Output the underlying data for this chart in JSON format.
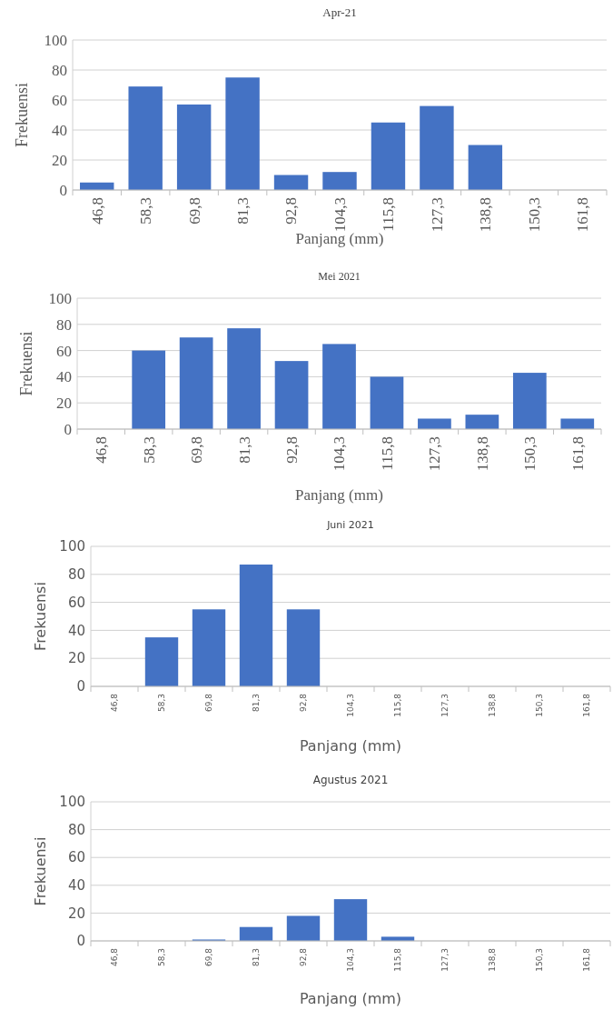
{
  "chart_data": [
    {
      "type": "bar",
      "title": "Apr-21",
      "xlabel": "Panjang (mm)",
      "ylabel": "Frekuensi",
      "categories": [
        "46,8",
        "58,3",
        "69,8",
        "81,3",
        "92,8",
        "104,3",
        "115,8",
        "127,3",
        "138,8",
        "150,3",
        "161,8"
      ],
      "values": [
        5,
        69,
        57,
        75,
        10,
        12,
        45,
        56,
        30,
        0,
        0
      ],
      "color": "#4472c4",
      "ylim": [
        0,
        100
      ],
      "yticks": [
        0,
        20,
        40,
        60,
        80,
        100
      ],
      "grid": "y"
    },
    {
      "type": "bar",
      "title": "Mei 2021",
      "xlabel": "Panjang (mm)",
      "ylabel": "Frekuensi",
      "categories": [
        "46,8",
        "58,3",
        "69,8",
        "81,3",
        "92,8",
        "104,3",
        "115,8",
        "127,3",
        "138,8",
        "150,3",
        "161,8"
      ],
      "values": [
        0,
        60,
        70,
        77,
        52,
        65,
        40,
        8,
        11,
        43,
        8
      ],
      "color": "#4472c4",
      "ylim": [
        0,
        100
      ],
      "yticks": [
        0,
        20,
        40,
        60,
        80,
        100
      ],
      "grid": "y"
    },
    {
      "type": "bar",
      "title": "Juni 2021",
      "xlabel": "Panjang (mm)",
      "ylabel": "Frekuensi",
      "categories": [
        "46,8",
        "58,3",
        "69,8",
        "81,3",
        "92,8",
        "104,3",
        "115,8",
        "127,3",
        "138,8",
        "150,3",
        "161,8"
      ],
      "values": [
        0,
        35,
        55,
        87,
        55,
        0,
        0,
        0,
        0,
        0,
        0
      ],
      "color": "#4472c4",
      "ylim": [
        0,
        100
      ],
      "yticks": [
        0,
        20,
        40,
        60,
        80,
        100
      ],
      "grid": "y"
    },
    {
      "type": "bar",
      "title": "Agustus 2021",
      "xlabel": "Panjang (mm)",
      "ylabel": "Frekuensi",
      "categories": [
        "46,8",
        "58,3",
        "69,8",
        "81,3",
        "92,8",
        "104,3",
        "115,8",
        "127,3",
        "138,8",
        "150,3",
        "161,8"
      ],
      "values": [
        0,
        0,
        1,
        10,
        18,
        30,
        3,
        0,
        0,
        0,
        0
      ],
      "color": "#4472c4",
      "ylim": [
        0,
        100
      ],
      "yticks": [
        0,
        20,
        40,
        60,
        80,
        100
      ],
      "grid": "y"
    }
  ]
}
